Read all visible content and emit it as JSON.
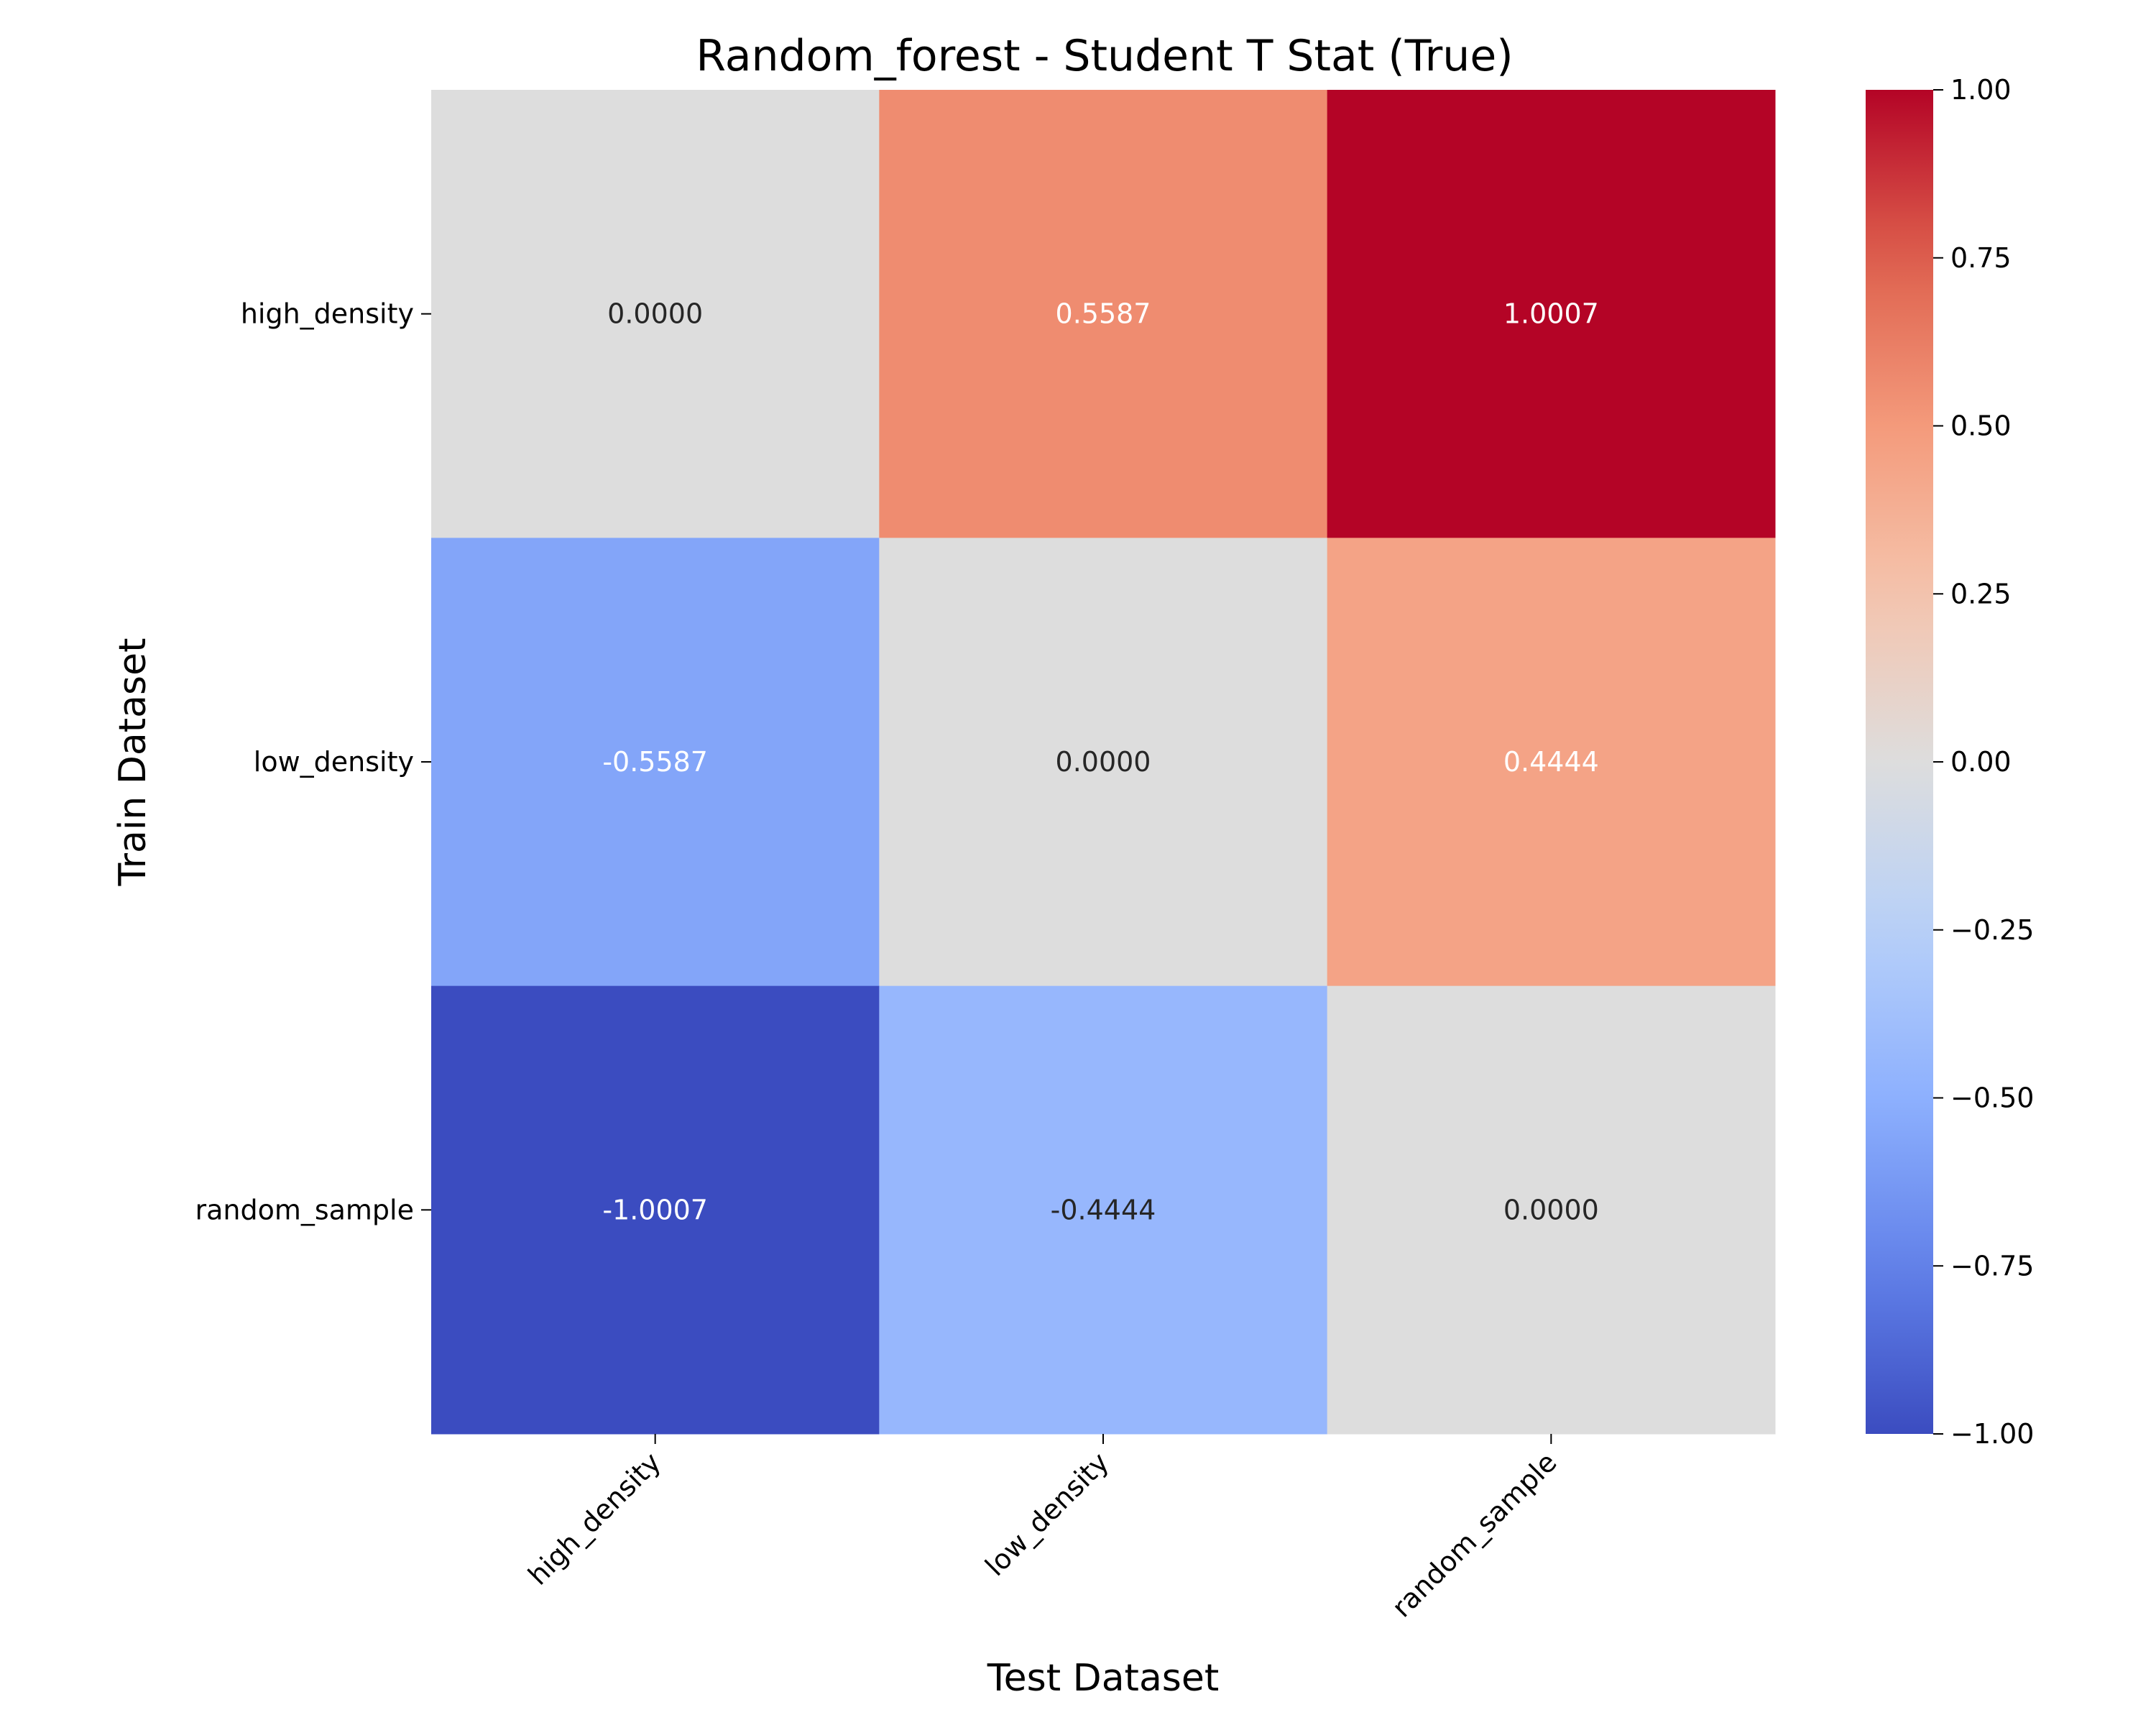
{
  "chart_data": {
    "type": "heatmap",
    "title": "Random_forest - Student T Stat (True)",
    "xlabel": "Test Dataset",
    "ylabel": "Train Dataset",
    "x_categories": [
      "high_density",
      "low_density",
      "random_sample"
    ],
    "y_categories": [
      "high_density",
      "low_density",
      "random_sample"
    ],
    "values": [
      [
        0.0,
        0.5587,
        1.0007
      ],
      [
        -0.5587,
        0.0,
        0.4444
      ],
      [
        -1.0007,
        -0.4444,
        0.0
      ]
    ],
    "cell_labels": [
      [
        "0.0000",
        "0.5587",
        "1.0007"
      ],
      [
        "-0.5587",
        "0.0000",
        "0.4444"
      ],
      [
        "-1.0007",
        "-0.4444",
        "0.0000"
      ]
    ],
    "colormap": "coolwarm",
    "vmin": -1.0,
    "vmax": 1.0,
    "colorbar_ticks": [
      1.0,
      0.75,
      0.5,
      0.25,
      0.0,
      -0.25,
      -0.5,
      -0.75,
      -1.0
    ],
    "colorbar_tick_labels": [
      "1.00",
      "0.75",
      "0.50",
      "0.25",
      "0.00",
      "−0.25",
      "−0.50",
      "−0.75",
      "−1.00"
    ],
    "legend_placement": "right",
    "grid": false
  }
}
